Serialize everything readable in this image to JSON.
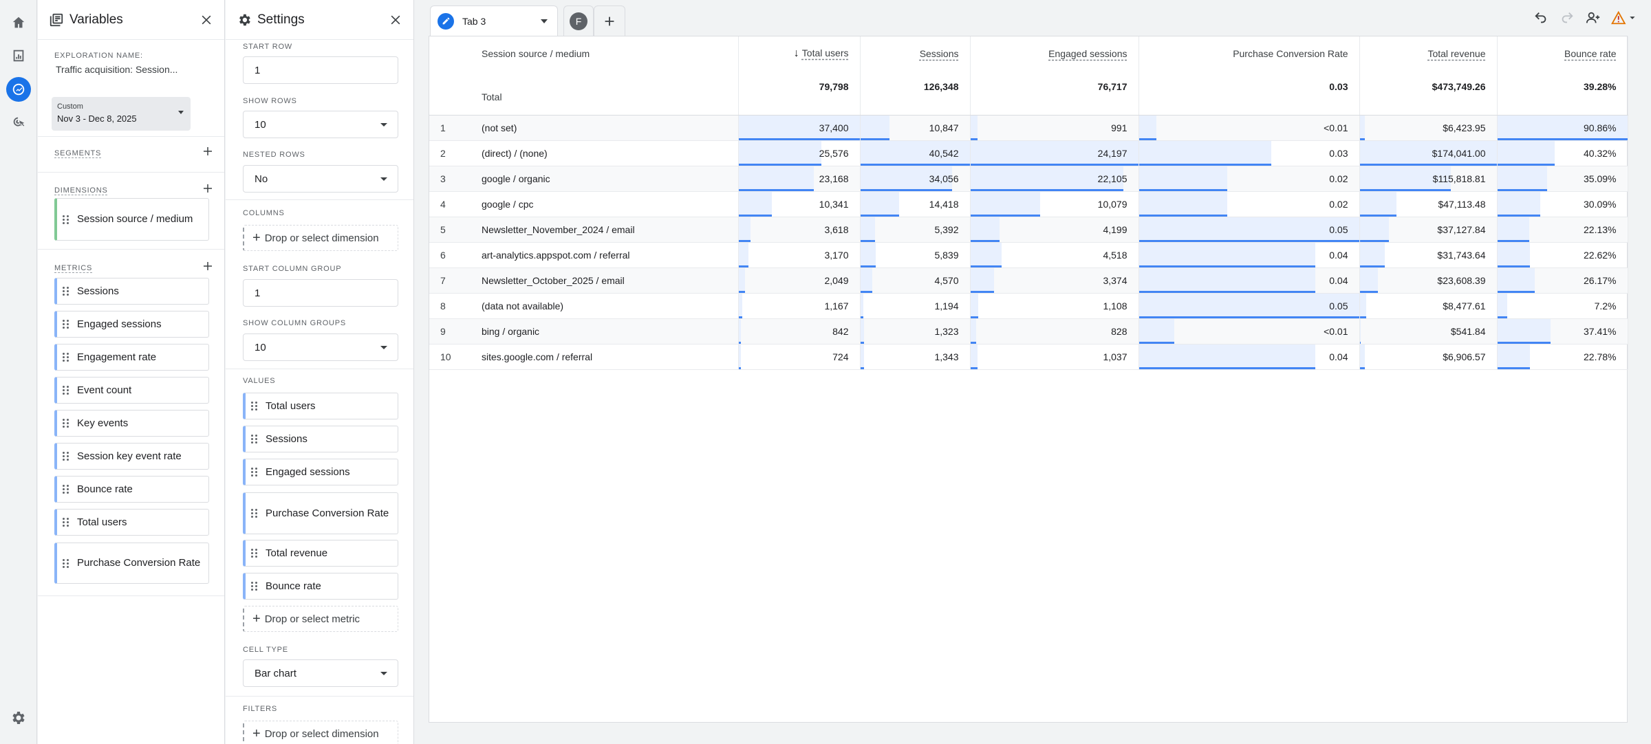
{
  "nav": {
    "items": [
      {
        "icon": "home-icon"
      },
      {
        "icon": "reports-icon"
      },
      {
        "icon": "explore-icon"
      },
      {
        "icon": "advertising-icon"
      }
    ],
    "active": "explore-icon",
    "bottom_icon": "admin-gear-icon"
  },
  "variables": {
    "title": "Variables",
    "exploration_name_label": "EXPLORATION NAME:",
    "exploration_name": "Traffic acquisition: Session...",
    "date_label": "Custom",
    "date_range": "Nov 3 - Dec 8, 2025",
    "segments_label": "SEGMENTS",
    "dimensions_label": "DIMENSIONS",
    "dimensions": [
      "Session source / medium"
    ],
    "metrics_label": "METRICS",
    "metrics": [
      "Sessions",
      "Engaged sessions",
      "Engagement rate",
      "Event count",
      "Key events",
      "Session key event rate",
      "Bounce rate",
      "Total users",
      "Purchase Conversion Rate"
    ]
  },
  "settings": {
    "title": "Settings",
    "start_row_label": "START ROW",
    "start_row": "1",
    "show_rows_label": "SHOW ROWS",
    "show_rows": "10",
    "nested_rows_label": "NESTED ROWS",
    "nested_rows": "No",
    "columns_label": "COLUMNS",
    "columns_drop": "Drop or select dimension",
    "start_col_group_label": "START COLUMN GROUP",
    "start_col_group": "1",
    "show_col_groups_label": "SHOW COLUMN GROUPS",
    "show_col_groups": "10",
    "values_label": "VALUES",
    "values": [
      "Total users",
      "Sessions",
      "Engaged sessions",
      "Purchase Conversion Rate",
      "Total revenue",
      "Bounce rate"
    ],
    "values_drop": "Drop or select metric",
    "cell_type_label": "CELL TYPE",
    "cell_type": "Bar chart",
    "filters_label": "FILTERS",
    "filters_drop": "Drop or select dimension"
  },
  "tabs": {
    "active_label": "Tab 3",
    "freeform_letter": "F"
  },
  "toolbar": {
    "icons": [
      "undo-icon",
      "redo-icon",
      "share-icon",
      "warning-icon"
    ]
  },
  "colors": {
    "accent": "#1a73e8",
    "bar_fill": "#e8f0fe",
    "bar_line": "#4285f4",
    "warning": "#e37400"
  },
  "table": {
    "dimension_header": "Session source / medium",
    "total_label": "Total",
    "columns": [
      {
        "label": "Total users",
        "sorted": true,
        "underline": true,
        "total": "79,798"
      },
      {
        "label": "Sessions",
        "sorted": false,
        "underline": true,
        "total": "126,348"
      },
      {
        "label": "Engaged sessions",
        "sorted": false,
        "underline": true,
        "total": "76,717"
      },
      {
        "label": "Purchase Conversion Rate",
        "sorted": false,
        "underline": false,
        "total": "0.03"
      },
      {
        "label": "Total revenue",
        "sorted": false,
        "underline": true,
        "total": "$473,749.26"
      },
      {
        "label": "Bounce rate",
        "sorted": false,
        "underline": true,
        "total": "39.28%"
      }
    ],
    "rows": [
      {
        "idx": "1",
        "dim": "(not set)",
        "values": [
          "37,400",
          "10,847",
          "991",
          "<0.01",
          "$6,423.95",
          "90.86%"
        ],
        "raw": [
          37400,
          10847,
          991,
          0.004,
          6423.95,
          90.86
        ]
      },
      {
        "idx": "2",
        "dim": "(direct) / (none)",
        "values": [
          "25,576",
          "40,542",
          "24,197",
          "0.03",
          "$174,041.00",
          "40.32%"
        ],
        "raw": [
          25576,
          40542,
          24197,
          0.03,
          174041,
          40.32
        ]
      },
      {
        "idx": "3",
        "dim": "google / organic",
        "values": [
          "23,168",
          "34,056",
          "22,105",
          "0.02",
          "$115,818.81",
          "35.09%"
        ],
        "raw": [
          23168,
          34056,
          22105,
          0.02,
          115818.81,
          35.09
        ]
      },
      {
        "idx": "4",
        "dim": "google / cpc",
        "values": [
          "10,341",
          "14,418",
          "10,079",
          "0.02",
          "$47,113.48",
          "30.09%"
        ],
        "raw": [
          10341,
          14418,
          10079,
          0.02,
          47113.48,
          30.09
        ]
      },
      {
        "idx": "5",
        "dim": "Newsletter_November_2024 / email",
        "values": [
          "3,618",
          "5,392",
          "4,199",
          "0.05",
          "$37,127.84",
          "22.13%"
        ],
        "raw": [
          3618,
          5392,
          4199,
          0.05,
          37127.84,
          22.13
        ]
      },
      {
        "idx": "6",
        "dim": "art-analytics.appspot.com / referral",
        "values": [
          "3,170",
          "5,839",
          "4,518",
          "0.04",
          "$31,743.64",
          "22.62%"
        ],
        "raw": [
          3170,
          5839,
          4518,
          0.04,
          31743.64,
          22.62
        ]
      },
      {
        "idx": "7",
        "dim": "Newsletter_October_2025 / email",
        "values": [
          "2,049",
          "4,570",
          "3,374",
          "0.04",
          "$23,608.39",
          "26.17%"
        ],
        "raw": [
          2049,
          4570,
          3374,
          0.04,
          23608.39,
          26.17
        ]
      },
      {
        "idx": "8",
        "dim": "(data not available)",
        "values": [
          "1,167",
          "1,194",
          "1,108",
          "0.05",
          "$8,477.61",
          "7.2%"
        ],
        "raw": [
          1167,
          1194,
          1108,
          0.05,
          8477.61,
          7.2
        ]
      },
      {
        "idx": "9",
        "dim": "bing / organic",
        "values": [
          "842",
          "1,323",
          "828",
          "<0.01",
          "$541.84",
          "37.41%"
        ],
        "raw": [
          842,
          1323,
          828,
          0.008,
          541.84,
          37.41
        ]
      },
      {
        "idx": "10",
        "dim": "sites.google.com / referral",
        "values": [
          "724",
          "1,343",
          "1,037",
          "0.04",
          "$6,906.57",
          "22.78%"
        ],
        "raw": [
          724,
          1343,
          1037,
          0.04,
          6906.57,
          22.78
        ]
      }
    ]
  }
}
